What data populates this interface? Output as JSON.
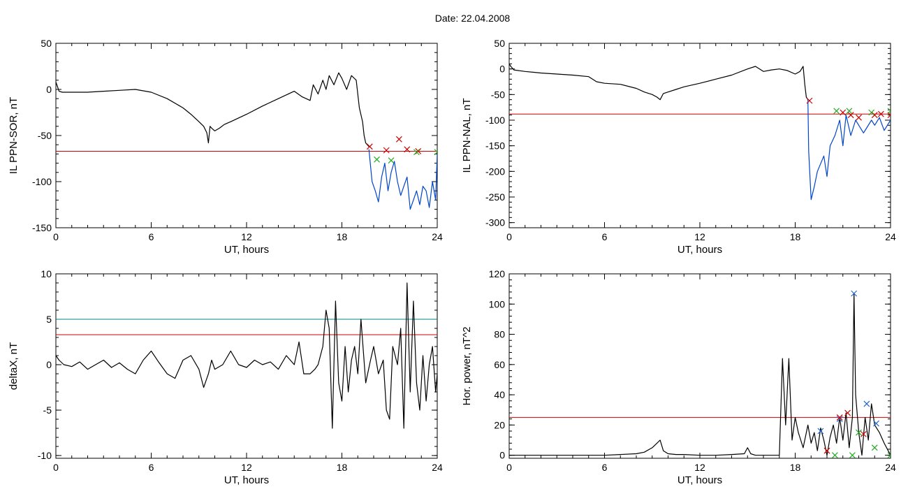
{
  "page": {
    "title": "Date:  22.04.2008"
  },
  "chart_data": [
    {
      "id": "sor",
      "type": "line",
      "xlabel": "UT, hours",
      "ylabel": "IL PPN-SOR, nT",
      "xlim": [
        0,
        24
      ],
      "ylim": [
        -150,
        50
      ],
      "xticks": [
        0,
        6,
        12,
        18,
        24
      ],
      "yticks": [
        -150,
        -100,
        -50,
        0,
        50
      ],
      "threshold_lines": [
        {
          "y": -67,
          "color": "#cc0000"
        }
      ],
      "series": [
        {
          "color": "#000000",
          "x": [
            0,
            0.1,
            0.2,
            0.4,
            1,
            2,
            3,
            4,
            5,
            6,
            7,
            8,
            8.5,
            9,
            9.3,
            9.5,
            9.6,
            9.7,
            9.8,
            10,
            10.3,
            10.6,
            11,
            12,
            13,
            14,
            15,
            15.5,
            16,
            16.2,
            16.5,
            16.8,
            17,
            17.2,
            17.5,
            17.8,
            18,
            18.3,
            18.6,
            18.9,
            19.1,
            19.3,
            19.4,
            19.5,
            19.7
          ],
          "y": [
            8,
            3,
            -2,
            -3,
            -3,
            -3,
            -2,
            -1,
            0,
            -3,
            -10,
            -20,
            -27,
            -35,
            -40,
            -47,
            -58,
            -40,
            -42,
            -45,
            -42,
            -38,
            -35,
            -27,
            -18,
            -10,
            -2,
            -8,
            -12,
            5,
            -5,
            10,
            0,
            15,
            5,
            18,
            12,
            0,
            15,
            10,
            -20,
            -35,
            -50,
            -58,
            -62
          ]
        },
        {
          "color": "#0044cc",
          "x": [
            19.7,
            19.9,
            20.1,
            20.3,
            20.5,
            20.7,
            20.9,
            21.1,
            21.3,
            21.5,
            21.7,
            21.9,
            22.1,
            22.3,
            22.5,
            22.7,
            22.9,
            23.1,
            23.3,
            23.5,
            23.7,
            23.9,
            24
          ],
          "y": [
            -65,
            -100,
            -110,
            -122,
            -95,
            -80,
            -110,
            -90,
            -78,
            -100,
            -115,
            -105,
            -95,
            -130,
            -120,
            -110,
            -125,
            -105,
            -110,
            -128,
            -100,
            -120,
            -70
          ]
        }
      ],
      "markers": [
        {
          "color": "#cc0000",
          "points": [
            [
              19.75,
              -62
            ],
            [
              20.8,
              -66
            ],
            [
              21.6,
              -54
            ],
            [
              22.1,
              -65
            ],
            [
              22.8,
              -67
            ]
          ]
        },
        {
          "color": "#22aa22",
          "points": [
            [
              20.2,
              -76
            ],
            [
              21.1,
              -77
            ],
            [
              22.7,
              -68
            ],
            [
              24,
              -68
            ]
          ]
        }
      ]
    },
    {
      "id": "nal",
      "type": "line",
      "xlabel": "UT, hours",
      "ylabel": "IL PPN-NAL, nT",
      "xlim": [
        0,
        24
      ],
      "ylim": [
        -310,
        50
      ],
      "xticks": [
        0,
        6,
        12,
        18,
        24
      ],
      "yticks": [
        -300,
        -250,
        -200,
        -150,
        -100,
        -50,
        0,
        50
      ],
      "threshold_lines": [
        {
          "y": -88,
          "color": "#cc0000"
        }
      ],
      "series": [
        {
          "color": "#000000",
          "x": [
            0,
            0.1,
            0.3,
            1,
            2,
            3,
            4,
            5,
            5.5,
            6,
            7,
            8,
            8.5,
            9,
            9.3,
            9.5,
            9.7,
            10,
            10.5,
            11,
            12,
            13,
            14,
            15,
            15.5,
            16,
            16.5,
            17,
            17.5,
            18,
            18.3,
            18.5,
            18.6,
            18.7,
            18.8
          ],
          "y": [
            10,
            5,
            -2,
            -5,
            -8,
            -10,
            -12,
            -15,
            -25,
            -28,
            -30,
            -38,
            -45,
            -50,
            -55,
            -60,
            -48,
            -45,
            -40,
            -35,
            -28,
            -20,
            -12,
            0,
            5,
            -5,
            -2,
            0,
            -3,
            -10,
            -5,
            5,
            -30,
            -55,
            -60
          ]
        },
        {
          "color": "#0044cc",
          "x": [
            18.8,
            18.85,
            19,
            19.2,
            19.4,
            19.6,
            19.8,
            20,
            20.2,
            20.5,
            20.8,
            21,
            21.2,
            21.5,
            21.8,
            22,
            22.3,
            22.5,
            22.8,
            23,
            23.3,
            23.6,
            24
          ],
          "y": [
            -60,
            -160,
            -255,
            -230,
            -200,
            -185,
            -170,
            -210,
            -150,
            -130,
            -100,
            -150,
            -90,
            -130,
            -100,
            -110,
            -125,
            -115,
            -100,
            -110,
            -95,
            -120,
            -100
          ]
        }
      ],
      "markers": [
        {
          "color": "#cc0000",
          "points": [
            [
              18.9,
              -62
            ],
            [
              21,
              -85
            ],
            [
              21.5,
              -90
            ],
            [
              22,
              -95
            ],
            [
              23,
              -90
            ],
            [
              23.4,
              -88
            ],
            [
              24,
              -90
            ]
          ]
        },
        {
          "color": "#22aa22",
          "points": [
            [
              20.6,
              -82
            ],
            [
              21.4,
              -82
            ],
            [
              22.8,
              -85
            ],
            [
              24,
              -82
            ]
          ]
        }
      ]
    },
    {
      "id": "deltax",
      "type": "line",
      "xlabel": "UT, hours",
      "ylabel": "deltaX, nT",
      "xlim": [
        0,
        24
      ],
      "ylim": [
        -10.3,
        10
      ],
      "xticks": [
        0,
        6,
        12,
        18,
        24
      ],
      "yticks": [
        -10,
        -5,
        0,
        5,
        10
      ],
      "threshold_lines": [
        {
          "y": 5,
          "color": "#008888"
        },
        {
          "y": 3.3,
          "color": "#cc0000"
        }
      ],
      "series": [
        {
          "color": "#000000",
          "x": [
            0,
            0.2,
            0.5,
            1,
            1.5,
            2,
            2.5,
            3,
            3.5,
            4,
            4.5,
            5,
            5.5,
            6,
            6.5,
            7,
            7.5,
            8,
            8.5,
            9,
            9.3,
            9.6,
            9.8,
            10,
            10.5,
            11,
            11.5,
            12,
            12.5,
            13,
            13.5,
            14,
            14.5,
            15,
            15.3,
            15.6,
            16,
            16.3,
            16.5,
            16.8,
            17,
            17.2,
            17.4,
            17.6,
            17.8,
            18,
            18.2,
            18.4,
            18.6,
            18.8,
            19,
            19.2,
            19.5,
            19.8,
            20,
            20.3,
            20.6,
            20.8,
            21,
            21.2,
            21.5,
            21.7,
            21.9,
            22.1,
            22.3,
            22.5,
            22.7,
            22.9,
            23.1,
            23.3,
            23.5,
            23.7,
            23.9,
            24
          ],
          "y": [
            1,
            0.5,
            0,
            -0.2,
            0.3,
            -0.5,
            0,
            0.5,
            -0.3,
            0.2,
            -0.5,
            -1,
            0.5,
            1.5,
            0.2,
            -1,
            -1.5,
            0.5,
            1,
            -0.5,
            -2.5,
            -1,
            0.5,
            -0.5,
            0,
            1.5,
            0,
            -0.3,
            0.5,
            0,
            0.3,
            -0.5,
            1,
            0,
            2.5,
            -1,
            -1,
            -0.5,
            0,
            2,
            6,
            4,
            -7,
            7,
            -2,
            -4,
            2,
            -3,
            0.5,
            2,
            -1,
            5,
            -2,
            0.5,
            2,
            -1,
            0.5,
            -5,
            -6,
            2,
            0,
            4,
            -7,
            9,
            -3,
            7,
            -2,
            -5,
            1,
            -4,
            0,
            2,
            -3,
            -1
          ]
        }
      ],
      "markers": []
    },
    {
      "id": "horpower",
      "type": "line",
      "xlabel": "UT, hours",
      "ylabel": "Hor. power, nT^2",
      "xlim": [
        0,
        24
      ],
      "ylim": [
        -2,
        120
      ],
      "xticks": [
        0,
        6,
        12,
        18,
        24
      ],
      "yticks": [
        0,
        20,
        40,
        60,
        80,
        100,
        120
      ],
      "threshold_lines": [
        {
          "y": 25,
          "color": "#cc0000"
        }
      ],
      "series": [
        {
          "color": "#000000",
          "x": [
            0,
            1,
            2,
            3,
            4,
            5,
            6,
            7,
            8,
            8.5,
            9,
            9.3,
            9.5,
            9.7,
            10,
            10.5,
            11,
            12,
            13,
            14,
            14.8,
            15,
            15.2,
            15.5,
            16,
            16.5,
            17,
            17.2,
            17.4,
            17.6,
            17.8,
            18,
            18.2,
            18.5,
            18.8,
            19,
            19.2,
            19.4,
            19.6,
            19.8,
            20,
            20.2,
            20.4,
            20.6,
            20.8,
            21,
            21.2,
            21.4,
            21.6,
            21.7,
            21.8,
            22,
            22.2,
            22.4,
            22.6,
            22.8,
            23,
            23.3,
            23.6,
            24
          ],
          "y": [
            0,
            0,
            0,
            0,
            0,
            0,
            0,
            0.5,
            1,
            2,
            5,
            8,
            10,
            3,
            1,
            0.5,
            0.5,
            0,
            0,
            0.5,
            1,
            5,
            1,
            0,
            0,
            0,
            0,
            64,
            20,
            64,
            10,
            25,
            15,
            5,
            20,
            8,
            15,
            3,
            18,
            10,
            0,
            12,
            20,
            8,
            25,
            10,
            28,
            5,
            25,
            107,
            40,
            15,
            0,
            25,
            10,
            34,
            20,
            15,
            8,
            0
          ]
        }
      ],
      "markers": [
        {
          "color": "#2266cc",
          "points": [
            [
              19.6,
              16
            ],
            [
              20.8,
              24
            ],
            [
              21.7,
              107
            ],
            [
              22.5,
              34
            ],
            [
              23.1,
              21
            ]
          ]
        },
        {
          "color": "#cc0000",
          "points": [
            [
              20,
              3
            ],
            [
              20.8,
              25
            ],
            [
              21.3,
              28
            ],
            [
              22.3,
              14
            ]
          ]
        },
        {
          "color": "#22aa22",
          "points": [
            [
              20.5,
              0
            ],
            [
              21.6,
              0
            ],
            [
              22,
              15
            ],
            [
              23,
              5
            ],
            [
              24,
              0
            ]
          ]
        }
      ]
    }
  ]
}
